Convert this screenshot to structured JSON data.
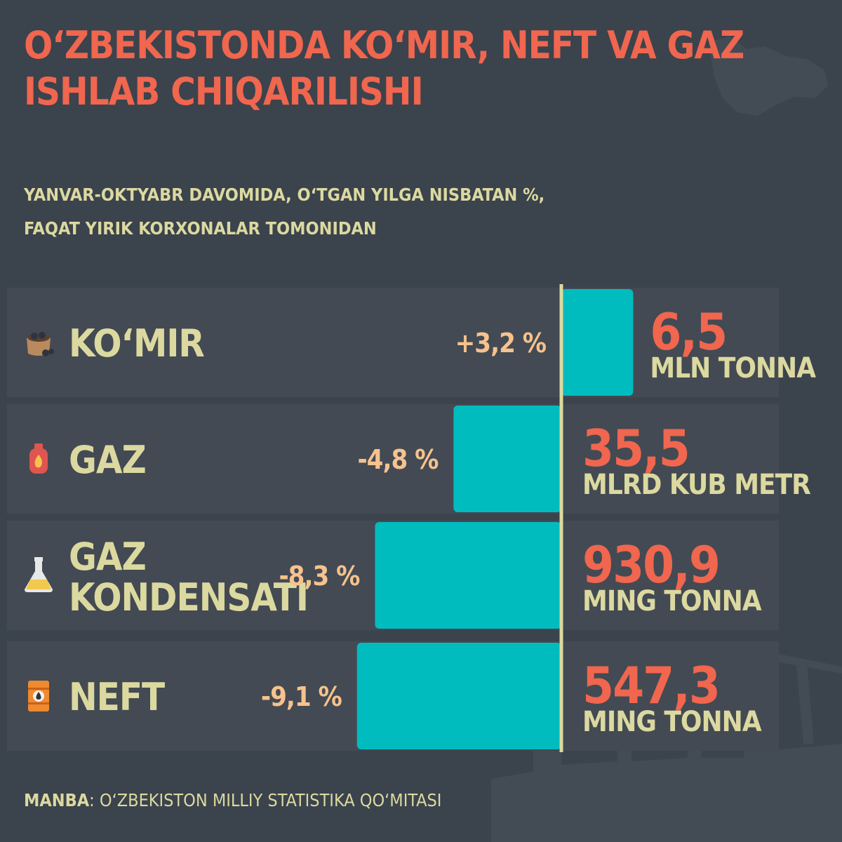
{
  "title": "O‘ZBEKISTONDA KO‘MIR, NEFT VA GAZ ISHLAB CHIQARILISHI",
  "subtitle_line1": "YANVAR-OKTYABR DAVOMIDA, O‘TGAN YILGA NISBATAN %,",
  "subtitle_line2": "FAQAT YIRIK KORXONALAR TOMONIDAN",
  "source_label": "MANBA",
  "source_text": ": O‘ZBEKISTON MILLIY STATISTIKA QO‘MITASI",
  "colors": {
    "background": "#3b434d",
    "title": "#f0664e",
    "label": "#dcd9a0",
    "percent": "#f6c28d",
    "bar": "#00bcbf",
    "axis": "#dcd9a0",
    "value": "#f0664e"
  },
  "chart_data": {
    "type": "bar",
    "orientation": "horizontal-diverging",
    "categories": [
      "KO‘MIR",
      "GAZ",
      "GAZ KONDENSATI",
      "NEFT"
    ],
    "icons": [
      "coal-sack-icon",
      "gas-cylinder-icon",
      "flask-icon",
      "oil-barrel-icon"
    ],
    "values": [
      3.2,
      -4.8,
      -8.3,
      -9.1
    ],
    "value_labels": [
      "+3,2 %",
      "-4,8 %",
      "-8,3 %",
      "-9,1 %"
    ],
    "production_values": [
      "6,5",
      "35,5",
      "930,9",
      "547,3"
    ],
    "production_units": [
      "MLN TONNA",
      "MLRD KUB METR",
      "MING TONNA",
      "MING TONNA"
    ],
    "xlim": [
      -10,
      3.5
    ]
  }
}
